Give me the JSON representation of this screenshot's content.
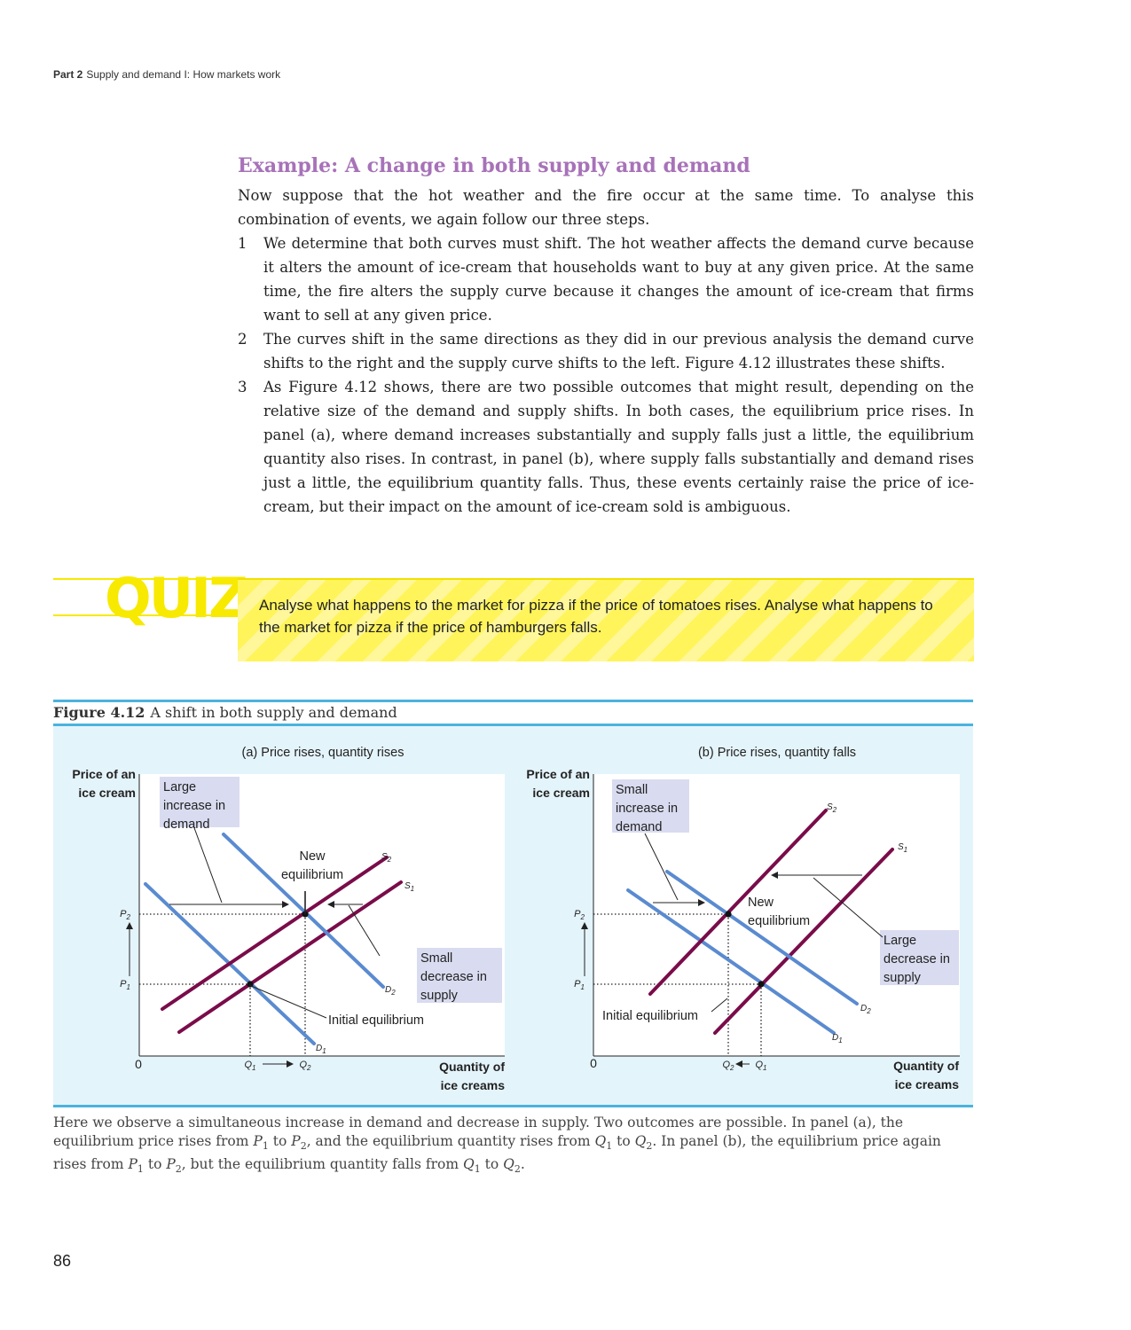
{
  "header": {
    "part": "Part 2",
    "subtitle": "Supply and demand I: How markets work"
  },
  "section": {
    "title": "Example: A change in both supply and demand",
    "intro": "Now suppose that the hot weather and the fire occur at the same time. To analyse this combination of events, we again follow our three steps.",
    "steps": [
      {
        "num": "1",
        "text": "We determine that both curves must shift. The hot weather affects the demand curve because it alters the amount of ice-cream that households want to buy at any given price. At the same time, the fire alters the supply curve because it changes the amount of ice-cream that firms want to sell at any given price."
      },
      {
        "num": "2",
        "text": "The curves shift in the same directions as they did in our previous analysis  the demand curve shifts to the right and the supply curve shifts to the left. Figure 4.12 illustrates these shifts."
      },
      {
        "num": "3",
        "text": "As Figure 4.12 shows, there are two possible outcomes that might result, depending on the relative size of the demand and supply shifts. In both cases, the equilibrium price rises. In panel (a), where demand increases substantially and supply falls just a little, the equilibrium quantity also rises. In contrast, in panel (b), where supply falls substantially and demand rises just a little, the equilibrium quantity falls. Thus, these events certainly raise the price of ice-cream, but their impact on the amount of ice-cream sold is ambiguous."
      }
    ]
  },
  "quiz": {
    "label": "QUIZ",
    "text": "Analyse what happens to the market for pizza if the price of tomatoes rises. Analyse what happens to the market for pizza if the price of hamburgers falls."
  },
  "figure": {
    "number": "Figure 4.12",
    "title": "A shift in both supply and demand",
    "notes": [
      "Here we observe a simultaneous increase in demand and decrease in supply. Two outcomes are possible. In panel (a), the equilibrium price rises from ",
      "P",
      "1",
      " to ",
      "P",
      "2",
      ", and the equilibrium quantity rises from ",
      "Q",
      "1",
      " to ",
      "Q",
      "2",
      ". In panel (b), the equilibrium price again rises from ",
      "P",
      "1",
      " to ",
      "P",
      "2",
      ", but the equilibrium quantity falls from ",
      "Q",
      "1",
      " to ",
      "Q",
      "2",
      "."
    ],
    "colors": {
      "supply": "#7a0c4a",
      "demand": "#5a8bd0",
      "highlight": "#d9dcf0",
      "panel_bg": "#e4f4fb",
      "rule": "#4ab3de"
    }
  },
  "chart_data": [
    {
      "type": "line",
      "title": "(a) Price rises, quantity rises",
      "ylabel": [
        "Price of an",
        "ice cream"
      ],
      "xlabel": [
        "Quantity of",
        "ice creams"
      ],
      "origin": "0",
      "price_ticks": [
        "P2",
        "P1"
      ],
      "quantity_ticks": [
        "Q1",
        "Q2"
      ],
      "series": [
        {
          "name": "D1",
          "kind": "demand"
        },
        {
          "name": "D2",
          "kind": "demand"
        },
        {
          "name": "S1",
          "kind": "supply"
        },
        {
          "name": "S2",
          "kind": "supply"
        }
      ],
      "equilibria": [
        {
          "label": "Initial equilibrium",
          "price": "P1",
          "quantity": "Q1"
        },
        {
          "label": [
            "New",
            "equilibrium"
          ],
          "price": "P2",
          "quantity": "Q2"
        }
      ],
      "annotations": [
        {
          "lines": [
            "Large",
            "increase in",
            "demand"
          ]
        },
        {
          "lines": [
            "Small",
            "decrease in",
            "supply"
          ]
        }
      ]
    },
    {
      "type": "line",
      "title": "(b) Price rises, quantity falls",
      "ylabel": [
        "Price of an",
        "ice cream"
      ],
      "xlabel": [
        "Quantity of",
        "ice creams"
      ],
      "origin": "0",
      "price_ticks": [
        "P2",
        "P1"
      ],
      "quantity_ticks": [
        "Q2",
        "Q1"
      ],
      "series": [
        {
          "name": "D1",
          "kind": "demand"
        },
        {
          "name": "D2",
          "kind": "demand"
        },
        {
          "name": "S1",
          "kind": "supply"
        },
        {
          "name": "S2",
          "kind": "supply"
        }
      ],
      "equilibria": [
        {
          "label": "Initial equilibrium",
          "price": "P1",
          "quantity": "Q1"
        },
        {
          "label": [
            "New",
            "equilibrium"
          ],
          "price": "P2",
          "quantity": "Q2"
        }
      ],
      "annotations": [
        {
          "lines": [
            "Small",
            "increase in",
            "demand"
          ]
        },
        {
          "lines": [
            "Large",
            "decrease in",
            "supply"
          ]
        }
      ]
    }
  ],
  "page": {
    "number": "86"
  }
}
